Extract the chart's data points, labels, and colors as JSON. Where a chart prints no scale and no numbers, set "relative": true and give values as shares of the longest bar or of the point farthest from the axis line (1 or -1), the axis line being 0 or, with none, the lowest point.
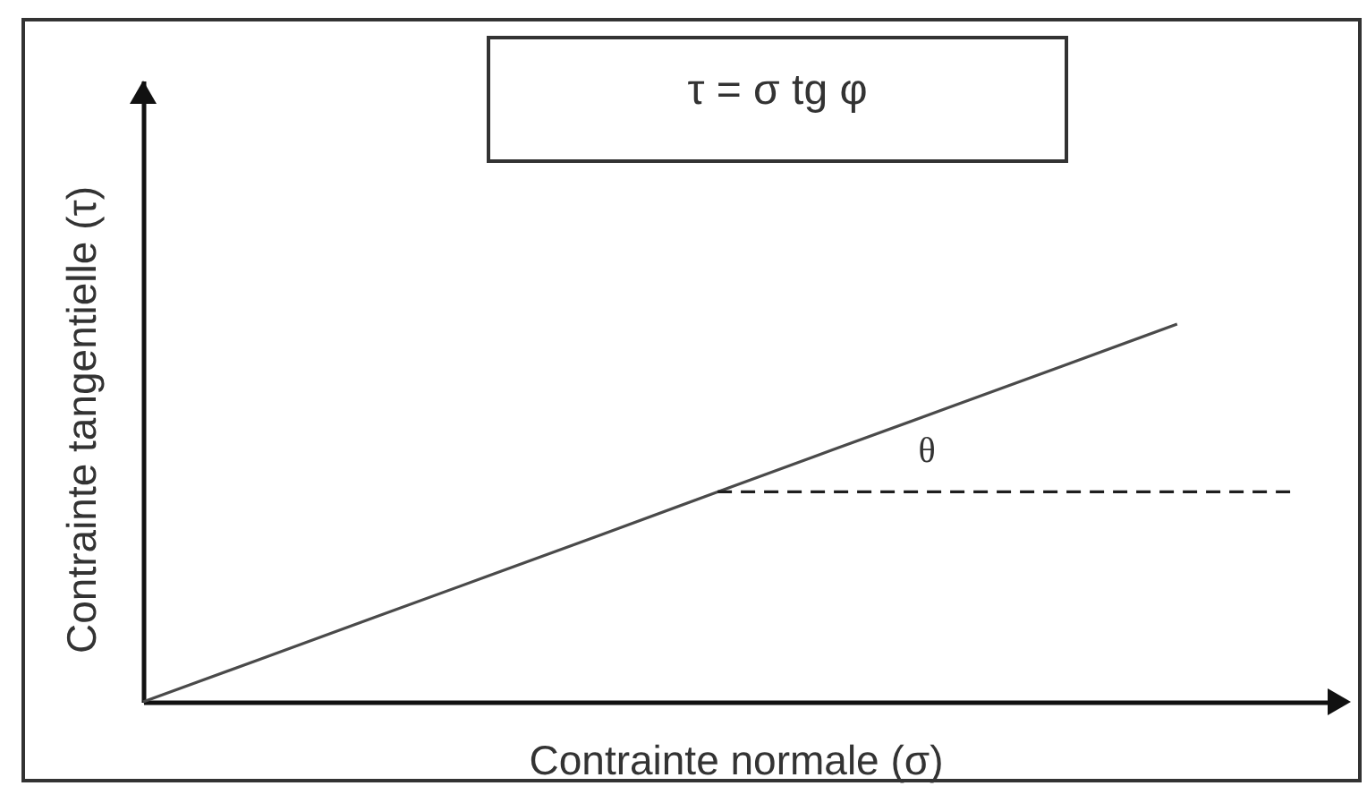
{
  "chart_data": {
    "type": "line",
    "title": "τ = σ tg φ",
    "xlabel": "Contrainte normale (σ)",
    "ylabel": "Contrainte tangentielle (τ)",
    "categories": [
      null,
      null,
      null,
      null,
      null,
      null,
      null,
      null,
      null,
      null,
      null
    ],
    "relative": true,
    "series": [
      {
        "color": "#4a4a4a",
        "values": [
          0,
          0.111,
          0.222,
          0.333,
          0.444,
          0.556,
          0.667,
          0.778,
          0.889,
          1,
          null
        ]
      },
      {
        "color": "#1e1e1e",
        "line_style": "dashed",
        "values": [
          null,
          null,
          null,
          null,
          null,
          0.556,
          0.556,
          0.556,
          0.556,
          0.556,
          0.556
        ]
      }
    ],
    "annotations": [
      "θ"
    ],
    "grid": false,
    "legend": false,
    "tick_labels": false,
    "marker": "none",
    "line_style": "solid"
  }
}
